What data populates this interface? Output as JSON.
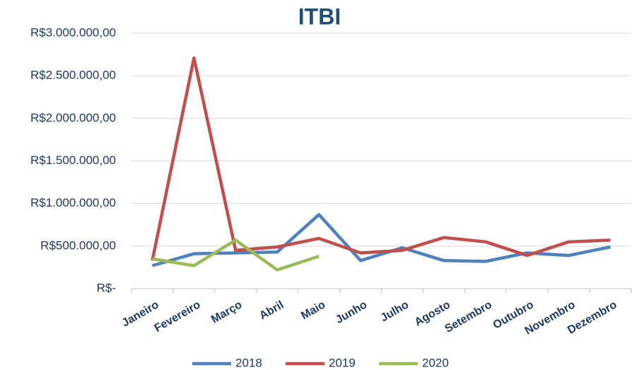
{
  "chart_data": {
    "type": "line",
    "title": "ITBI",
    "categories": [
      "Janeiro",
      "Fevereiro",
      "Março",
      "Abril",
      "Maio",
      "Junho",
      "Julho",
      "Agosto",
      "Setembro",
      "Outubro",
      "Novembro",
      "Dezembro"
    ],
    "series": [
      {
        "name": "2018",
        "color": "#4f81bd",
        "values": [
          270000,
          410000,
          420000,
          430000,
          870000,
          330000,
          480000,
          330000,
          320000,
          420000,
          390000,
          490000
        ]
      },
      {
        "name": "2019",
        "color": "#c0504d",
        "values": [
          330000,
          2710000,
          450000,
          490000,
          590000,
          420000,
          450000,
          600000,
          550000,
          390000,
          550000,
          570000
        ]
      },
      {
        "name": "2020",
        "color": "#9bbb59",
        "values": [
          350000,
          270000,
          570000,
          220000,
          380000,
          null,
          null,
          null,
          null,
          null,
          null,
          null
        ]
      }
    ],
    "ylim": [
      0,
      3000000
    ],
    "yticks": [
      {
        "value": 0,
        "label": "R$-"
      },
      {
        "value": 500000,
        "label": "R$500.000,00"
      },
      {
        "value": 1000000,
        "label": "R$1.000.000,00"
      },
      {
        "value": 1500000,
        "label": "R$1.500.000,00"
      },
      {
        "value": 2000000,
        "label": "R$2.000.000,00"
      },
      {
        "value": 2500000,
        "label": "R$2.500.000,00"
      },
      {
        "value": 3000000,
        "label": "R$3.000.000,00"
      }
    ],
    "grid": true,
    "legend": "bottom"
  }
}
